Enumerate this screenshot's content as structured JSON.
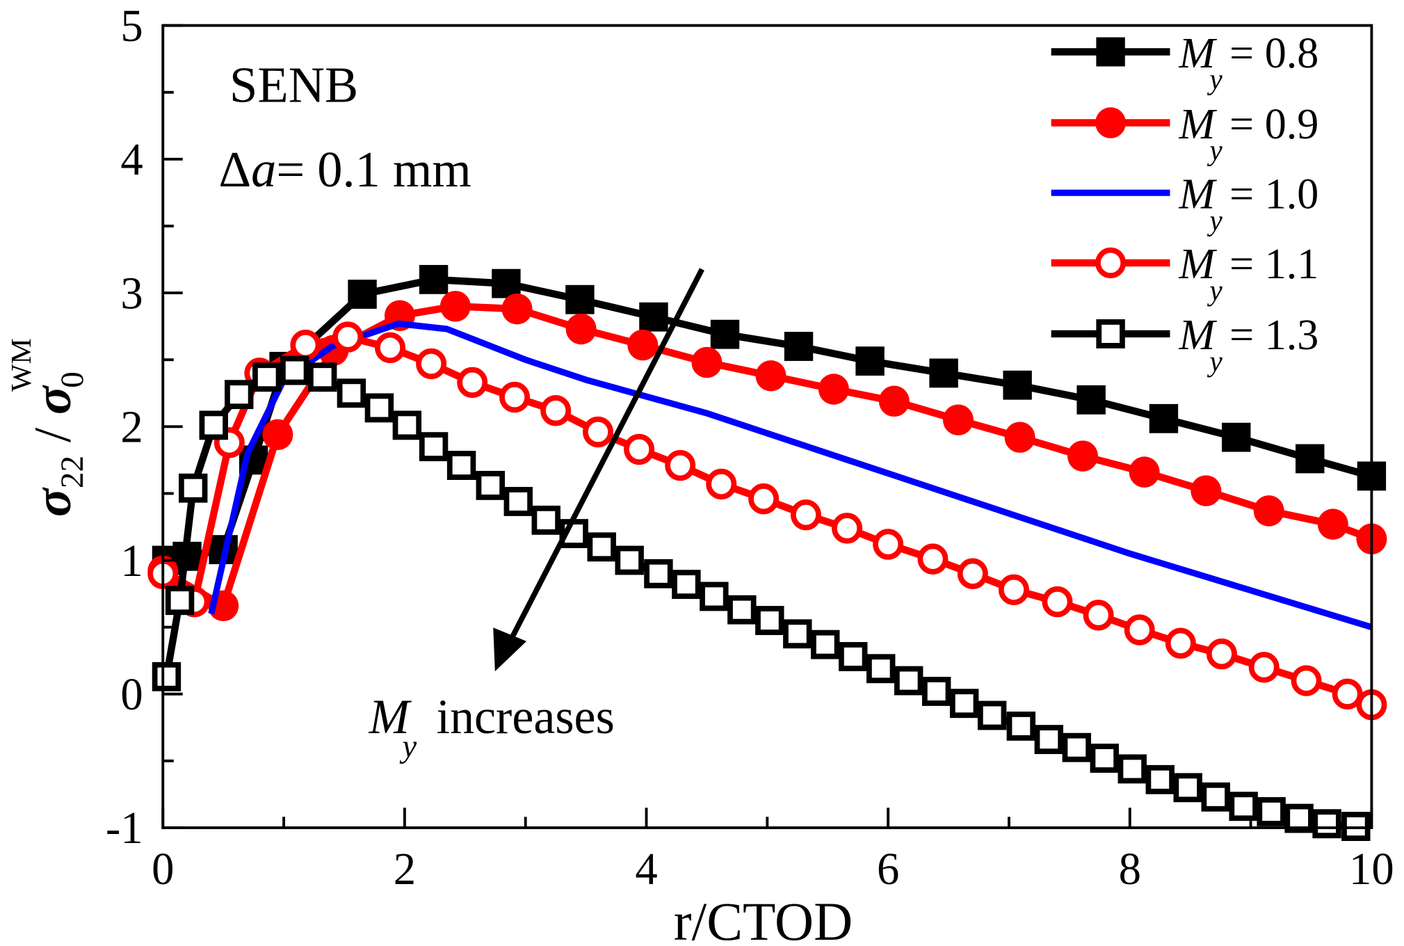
{
  "chart_data": {
    "type": "line",
    "title": "",
    "xlabel": "r/CTOD",
    "ylabel": {
      "main": "σ",
      "sub": "22",
      "sep": " / ",
      "main2": "σ",
      "sub2": "0",
      "sup2": "WM"
    },
    "xlim": [
      0,
      10
    ],
    "ylim": [
      -1,
      5
    ],
    "xticks": [
      0,
      2,
      4,
      6,
      8,
      10
    ],
    "yticks": [
      -1,
      0,
      1,
      2,
      3,
      4,
      5
    ],
    "xtick_labels": [
      "0",
      "2",
      "4",
      "6",
      "8",
      "10"
    ],
    "ytick_labels": [
      "-1",
      "0",
      "1",
      "2",
      "3",
      "4",
      "5"
    ],
    "grid": false,
    "legend_position": "top-right",
    "annotations": {
      "specimen": "SENB",
      "crack_delta": "Δ",
      "crack_a": "a",
      "crack_value": "= 0.1 mm",
      "trend_symbol": "M",
      "trend_sub": "y",
      "trend_text": "increases"
    },
    "series": [
      {
        "name": "My = 0.8",
        "sym": "M",
        "sub": "y",
        "value_label": "= 0.8",
        "color": "#000000",
        "marker": "square-filled",
        "points": [
          [
            0.03,
            1.0
          ],
          [
            0.2,
            1.03
          ],
          [
            0.5,
            1.08
          ],
          [
            0.75,
            1.75
          ],
          [
            1.0,
            2.45
          ],
          [
            1.65,
            2.99
          ],
          [
            2.24,
            3.1
          ],
          [
            2.84,
            3.07
          ],
          [
            3.45,
            2.95
          ],
          [
            4.06,
            2.82
          ],
          [
            4.65,
            2.69
          ],
          [
            5.26,
            2.6
          ],
          [
            5.85,
            2.49
          ],
          [
            6.46,
            2.4
          ],
          [
            7.07,
            2.31
          ],
          [
            7.68,
            2.2
          ],
          [
            8.28,
            2.06
          ],
          [
            8.88,
            1.92
          ],
          [
            9.49,
            1.76
          ],
          [
            10,
            1.63
          ]
        ]
      },
      {
        "name": "My = 0.9",
        "sym": "M",
        "sub": "y",
        "value_label": "= 0.9",
        "color": "#ff0000",
        "marker": "circle-filled",
        "points": [
          [
            0,
            0.92
          ],
          [
            0.5,
            0.66
          ],
          [
            0.95,
            1.94
          ],
          [
            1.41,
            2.57
          ],
          [
            1.96,
            2.83
          ],
          [
            2.42,
            2.9
          ],
          [
            2.93,
            2.88
          ],
          [
            3.46,
            2.73
          ],
          [
            3.97,
            2.61
          ],
          [
            4.5,
            2.48
          ],
          [
            5.03,
            2.38
          ],
          [
            5.55,
            2.28
          ],
          [
            6.05,
            2.19
          ],
          [
            6.58,
            2.05
          ],
          [
            7.09,
            1.92
          ],
          [
            7.61,
            1.78
          ],
          [
            8.12,
            1.66
          ],
          [
            8.63,
            1.52
          ],
          [
            9.15,
            1.37
          ],
          [
            9.68,
            1.27
          ],
          [
            10,
            1.16
          ]
        ]
      },
      {
        "name": "My = 1.0",
        "sym": "M",
        "sub": "y",
        "value_label": "= 1.0",
        "color": "#0000ff",
        "marker": "none",
        "points": [
          [
            0.4,
            0.6
          ],
          [
            0.7,
            1.8
          ],
          [
            1.0,
            2.35
          ],
          [
            1.4,
            2.6
          ],
          [
            1.95,
            2.77
          ],
          [
            2.35,
            2.73
          ],
          [
            3.0,
            2.5
          ],
          [
            3.5,
            2.35
          ],
          [
            4.5,
            2.1
          ],
          [
            6,
            1.65
          ],
          [
            8,
            1.05
          ],
          [
            10,
            0.5
          ]
        ]
      },
      {
        "name": "My = 1.1",
        "sym": "M",
        "sub": "y",
        "value_label": "= 1.1",
        "color": "#ff0000",
        "marker": "circle-open",
        "points": [
          [
            0,
            0.9
          ],
          [
            0.26,
            0.69
          ],
          [
            0.55,
            1.88
          ],
          [
            0.8,
            2.4
          ],
          [
            1.18,
            2.61
          ],
          [
            1.53,
            2.67
          ],
          [
            1.88,
            2.59
          ],
          [
            2.22,
            2.47
          ],
          [
            2.56,
            2.33
          ],
          [
            2.91,
            2.22
          ],
          [
            3.25,
            2.12
          ],
          [
            3.6,
            1.96
          ],
          [
            3.94,
            1.83
          ],
          [
            4.28,
            1.71
          ],
          [
            4.62,
            1.57
          ],
          [
            4.97,
            1.46
          ],
          [
            5.32,
            1.34
          ],
          [
            5.66,
            1.24
          ],
          [
            6.0,
            1.12
          ],
          [
            6.37,
            1.01
          ],
          [
            6.7,
            0.9
          ],
          [
            7.04,
            0.78
          ],
          [
            7.4,
            0.69
          ],
          [
            7.74,
            0.59
          ],
          [
            8.08,
            0.48
          ],
          [
            8.42,
            0.38
          ],
          [
            8.76,
            0.3
          ],
          [
            9.11,
            0.2
          ],
          [
            9.46,
            0.1
          ],
          [
            9.8,
            0.0
          ],
          [
            10,
            -0.08
          ]
        ]
      },
      {
        "name": "My = 1.3",
        "sym": "M",
        "sub": "y",
        "value_label": "= 1.3",
        "color": "#000000",
        "marker": "square-open",
        "points": [
          [
            0.03,
            0.13
          ],
          [
            0.14,
            0.7
          ],
          [
            0.25,
            1.54
          ],
          [
            0.42,
            2.01
          ],
          [
            0.63,
            2.24
          ],
          [
            0.86,
            2.37
          ],
          [
            1.09,
            2.42
          ],
          [
            1.32,
            2.37
          ],
          [
            1.56,
            2.25
          ],
          [
            1.79,
            2.14
          ],
          [
            2.02,
            2.01
          ],
          [
            2.24,
            1.85
          ],
          [
            2.47,
            1.71
          ],
          [
            2.71,
            1.56
          ],
          [
            2.94,
            1.44
          ],
          [
            3.17,
            1.3
          ],
          [
            3.4,
            1.2
          ],
          [
            3.63,
            1.1
          ],
          [
            3.86,
            1.0
          ],
          [
            4.1,
            0.9
          ],
          [
            4.33,
            0.82
          ],
          [
            4.56,
            0.73
          ],
          [
            4.79,
            0.63
          ],
          [
            5.02,
            0.55
          ],
          [
            5.25,
            0.45
          ],
          [
            5.48,
            0.37
          ],
          [
            5.71,
            0.28
          ],
          [
            5.94,
            0.19
          ],
          [
            6.17,
            0.1
          ],
          [
            6.4,
            0.02
          ],
          [
            6.63,
            -0.07
          ],
          [
            6.86,
            -0.16
          ],
          [
            7.1,
            -0.24
          ],
          [
            7.33,
            -0.34
          ],
          [
            7.56,
            -0.4
          ],
          [
            7.79,
            -0.48
          ],
          [
            8.02,
            -0.56
          ],
          [
            8.25,
            -0.64
          ],
          [
            8.48,
            -0.7
          ],
          [
            8.71,
            -0.77
          ],
          [
            8.94,
            -0.84
          ],
          [
            9.17,
            -0.88
          ],
          [
            9.4,
            -0.93
          ],
          [
            9.63,
            -0.97
          ],
          [
            9.87,
            -0.99
          ]
        ]
      }
    ]
  }
}
